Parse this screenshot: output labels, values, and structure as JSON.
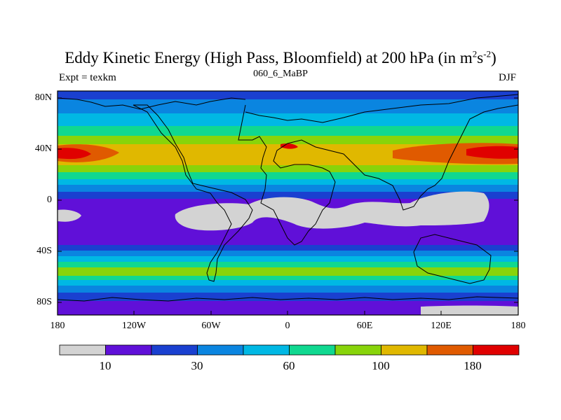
{
  "title": {
    "main": "Eddy Kinetic Energy (High Pass, Bloomfield) at 200 hPa (in m",
    "sup1": "2",
    "mid": "s",
    "sup2": "-2",
    "end": ")"
  },
  "subtitle": {
    "left": "Expt = texkm",
    "center": "060_6_MaBP",
    "right": "DJF"
  },
  "lat_labels": [
    "80N",
    "40N",
    "0",
    "40S",
    "80S"
  ],
  "lon_labels": [
    "180",
    "120W",
    "60W",
    "0",
    "60E",
    "120E",
    "180"
  ],
  "colorbar": {
    "colors": [
      "#d3d3d3",
      "#6010d8",
      "#1a40d0",
      "#0a85e0",
      "#00b8e4",
      "#10d890",
      "#88d40a",
      "#e0b800",
      "#e05a00",
      "#e00000"
    ],
    "labels": [
      "10",
      "30",
      "60",
      "100",
      "180"
    ]
  },
  "chart_data": {
    "type": "heatmap",
    "title": "Eddy Kinetic Energy (High Pass, Bloomfield) at 200 hPa (in m^2 s^-2)",
    "experiment": "texkm",
    "run": "060_6_MaBP",
    "season": "DJF",
    "xlim": [
      -180,
      180
    ],
    "ylim": [
      -90,
      90
    ],
    "contour_levels_labeled": [
      10,
      30,
      60,
      100,
      180
    ],
    "bands": [
      {
        "lat_range": [
          80,
          90
        ],
        "level": "mid (20-30)"
      },
      {
        "lat_range": [
          60,
          80
        ],
        "level": "30-60"
      },
      {
        "lat_range": [
          30,
          50
        ],
        "level": "100-140, max >180 near 40N 160E-180"
      },
      {
        "lat_range": [
          -5,
          5
        ],
        "level": "<10 over tropics"
      },
      {
        "lat_range": [
          -55,
          -40
        ],
        "level": "60-100"
      },
      {
        "lat_range": [
          -90,
          -70
        ],
        "level": "10-20"
      }
    ]
  }
}
